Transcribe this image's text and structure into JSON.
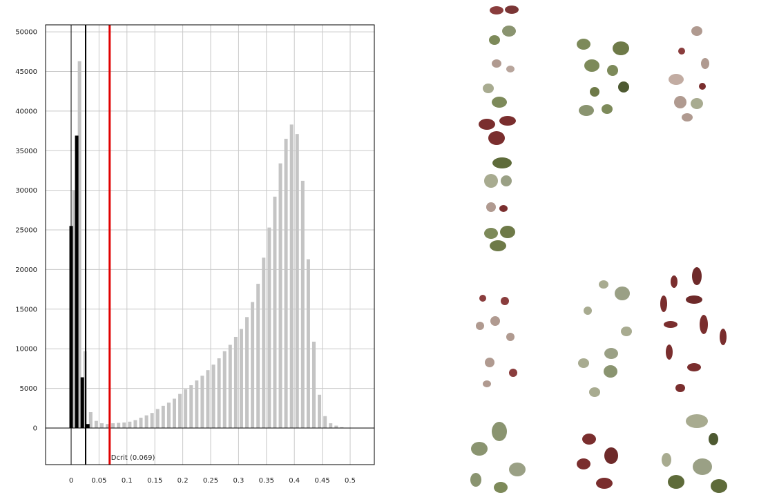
{
  "chart_data": {
    "type": "bar",
    "xlim": [
      -0.0458,
      0.5433
    ],
    "ylim": [
      -4620,
      50880
    ],
    "xticks": [
      0,
      0.05,
      0.1,
      0.15,
      0.2,
      0.25,
      0.3,
      0.35,
      0.4,
      0.45,
      0.5
    ],
    "yticks": [
      0,
      5000,
      10000,
      15000,
      20000,
      25000,
      30000,
      35000,
      40000,
      45000,
      50000
    ],
    "grid": true,
    "series": [
      {
        "color": "#c4c4c4",
        "x": [
          0.005,
          0.015,
          0.025,
          0.035,
          0.045,
          0.055,
          0.065,
          0.075,
          0.085,
          0.095,
          0.105,
          0.115,
          0.125,
          0.135,
          0.145,
          0.155,
          0.165,
          0.175,
          0.185,
          0.195,
          0.205,
          0.215,
          0.225,
          0.235,
          0.245,
          0.255,
          0.265,
          0.275,
          0.285,
          0.295,
          0.305,
          0.315,
          0.325,
          0.335,
          0.345,
          0.355,
          0.365,
          0.375,
          0.385,
          0.395,
          0.405,
          0.415,
          0.425,
          0.435,
          0.445,
          0.455,
          0.465,
          0.475,
          0.485
        ],
        "values": [
          30000,
          46300,
          9700,
          2000,
          900,
          600,
          500,
          600,
          650,
          700,
          800,
          1000,
          1300,
          1600,
          1900,
          2400,
          2800,
          3200,
          3700,
          4300,
          4900,
          5400,
          6000,
          6600,
          7300,
          8000,
          8800,
          9700,
          10500,
          11500,
          12500,
          14000,
          15900,
          18200,
          21500,
          25300,
          29200,
          33400,
          36500,
          38300,
          37100,
          31200,
          21300,
          10900,
          4200,
          1500,
          600,
          300,
          100
        ]
      },
      {
        "color": "#000000",
        "x": [
          0,
          0.01,
          0.02,
          0.03
        ],
        "values": [
          25500,
          36900,
          6400,
          500
        ]
      }
    ],
    "reference_lines": [
      {
        "value": 0,
        "color": "#000000"
      },
      {
        "value": 0.026,
        "color": "#000000"
      },
      {
        "value": 0.069,
        "color": "#e00000",
        "label": "Dcrit (0.069)"
      }
    ]
  }
}
